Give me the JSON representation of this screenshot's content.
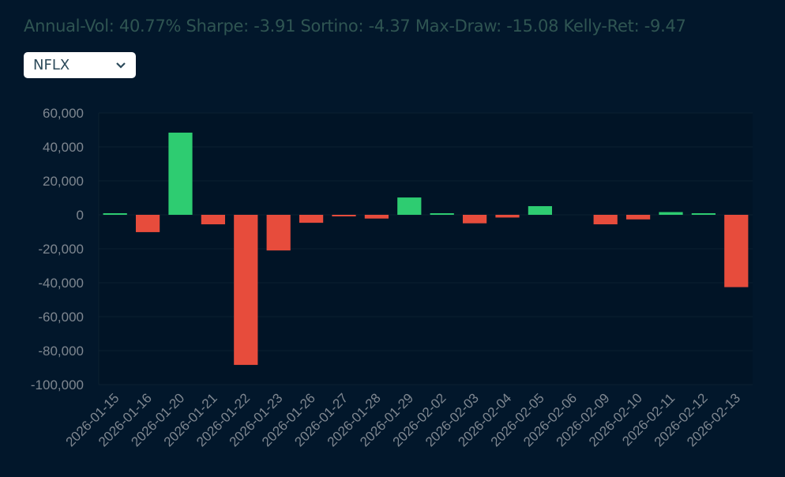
{
  "stats": {
    "text": "Annual-Vol: 40.77% Sharpe: -3.91 Sortino: -4.37 Max-Draw: -15.08 Kelly-Ret: -9.47"
  },
  "ticker_select": {
    "value": "NFLX"
  },
  "colors": {
    "positive": "#2ecc71",
    "negative": "#e74c3c",
    "axis_text": "#7f8790",
    "grid": "#0c2130"
  },
  "chart_data": {
    "type": "bar",
    "categories": [
      "2026-01-15",
      "2026-01-16",
      "2026-01-20",
      "2026-01-21",
      "2026-01-22",
      "2026-01-23",
      "2026-01-26",
      "2026-01-27",
      "2026-01-28",
      "2026-01-29",
      "2026-02-02",
      "2026-02-03",
      "2026-02-04",
      "2026-02-05",
      "2026-02-06",
      "2026-02-09",
      "2026-02-10",
      "2026-02-11",
      "2026-02-12",
      "2026-02-13"
    ],
    "values": [
      300,
      -10200,
      48400,
      -5600,
      -88400,
      -21000,
      -4700,
      -800,
      -2200,
      10200,
      700,
      -5000,
      -1600,
      5100,
      0,
      -5600,
      -2700,
      1600,
      600,
      -42600
    ],
    "yticks": [
      60000,
      40000,
      20000,
      0,
      -20000,
      -40000,
      -60000,
      -80000,
      -100000
    ],
    "ytick_labels": [
      "60,000",
      "40,000",
      "20,000",
      "0",
      "-20,000",
      "-40,000",
      "-60,000",
      "-80,000",
      "-100,000"
    ],
    "ylim": [
      -100000,
      60000
    ],
    "title": "",
    "xlabel": "",
    "ylabel": "",
    "grid": true
  }
}
